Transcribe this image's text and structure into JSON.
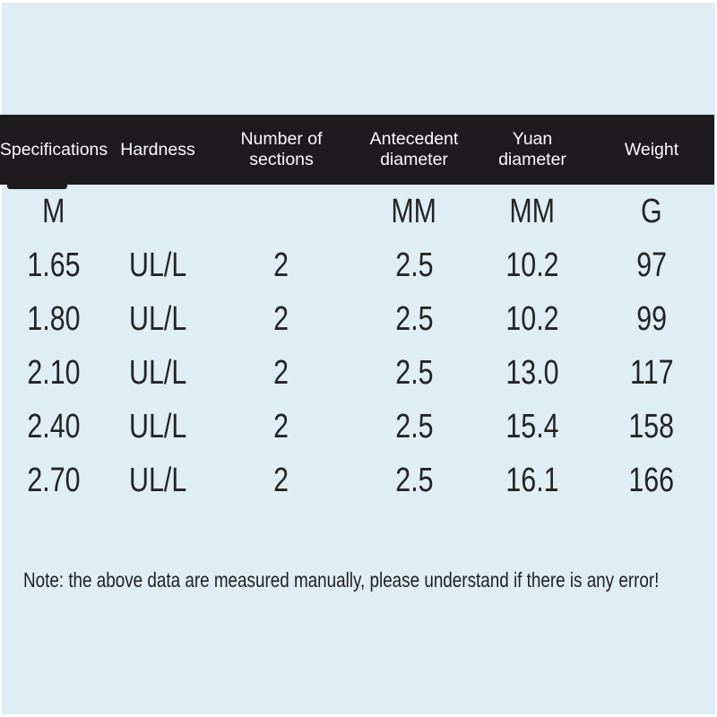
{
  "colors": {
    "page_border": "#fdfefe",
    "panel_background": "#dfedf5",
    "header_bar": "#1e1b1e",
    "header_text": "#fafafa",
    "body_text": "#242424"
  },
  "table": {
    "columns": [
      {
        "label": "Specifications",
        "unit": "M"
      },
      {
        "label": "Hardness",
        "unit": ""
      },
      {
        "label": "Number of sections",
        "unit": ""
      },
      {
        "label": "Antecedent diameter",
        "unit": "MM"
      },
      {
        "label": "Yuan diameter",
        "unit": "MM"
      },
      {
        "label": "Weight",
        "unit": "G"
      }
    ],
    "rows": [
      [
        "1.65",
        "UL/L",
        "2",
        "2.5",
        "10.2",
        "97"
      ],
      [
        "1.80",
        "UL/L",
        "2",
        "2.5",
        "10.2",
        "99"
      ],
      [
        "2.10",
        "UL/L",
        "2",
        "2.5",
        "13.0",
        "117"
      ],
      [
        "2.40",
        "UL/L",
        "2",
        "2.5",
        "15.4",
        "158"
      ],
      [
        "2.70",
        "UL/L",
        "2",
        "2.5",
        "16.1",
        "166"
      ]
    ]
  },
  "note": "Note: the above data are measured manually, please understand if there is any error!"
}
